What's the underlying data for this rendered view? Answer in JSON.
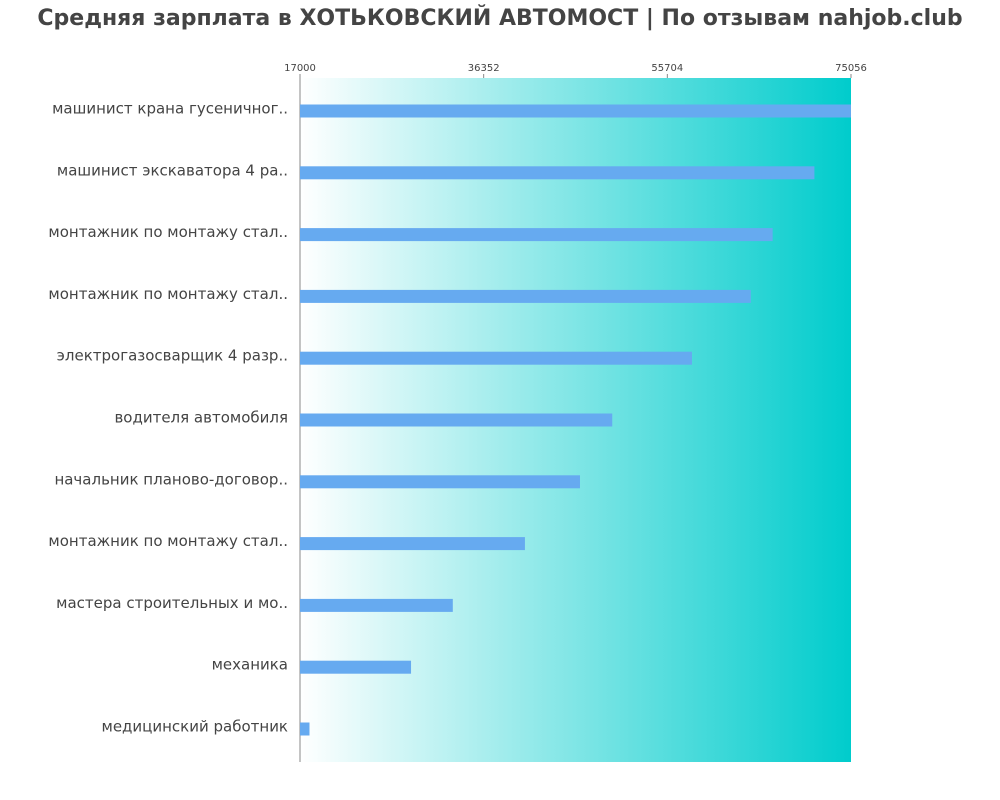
{
  "chart_data": {
    "type": "barh",
    "title": "Средняя зарплата в ХОТЬКОВСКИЙ АВТОМОСТ | По отзывам nahjob.club",
    "categories": [
      "машинист крана гусеничног..",
      "машинист экскаватора 4 ра..",
      "монтажник по монтажу стал..",
      "монтажник по монтажу стал..",
      "электрогазосварщик 4 разр..",
      "водителя автомобиля",
      "начальник планово-договор..",
      "монтажник по монтажу стал..",
      "мастера строительных и мо..",
      "механика",
      "медицинский работник"
    ],
    "values": [
      75056,
      71200,
      66800,
      64500,
      58300,
      49900,
      46500,
      40700,
      33100,
      28700,
      18000
    ],
    "color": "#66aaf0",
    "xlim": [
      17000,
      75056
    ],
    "xticks": [
      17000,
      36352,
      55704,
      75056
    ],
    "background_gradient": [
      "#ffffff",
      "#00cccc"
    ]
  }
}
